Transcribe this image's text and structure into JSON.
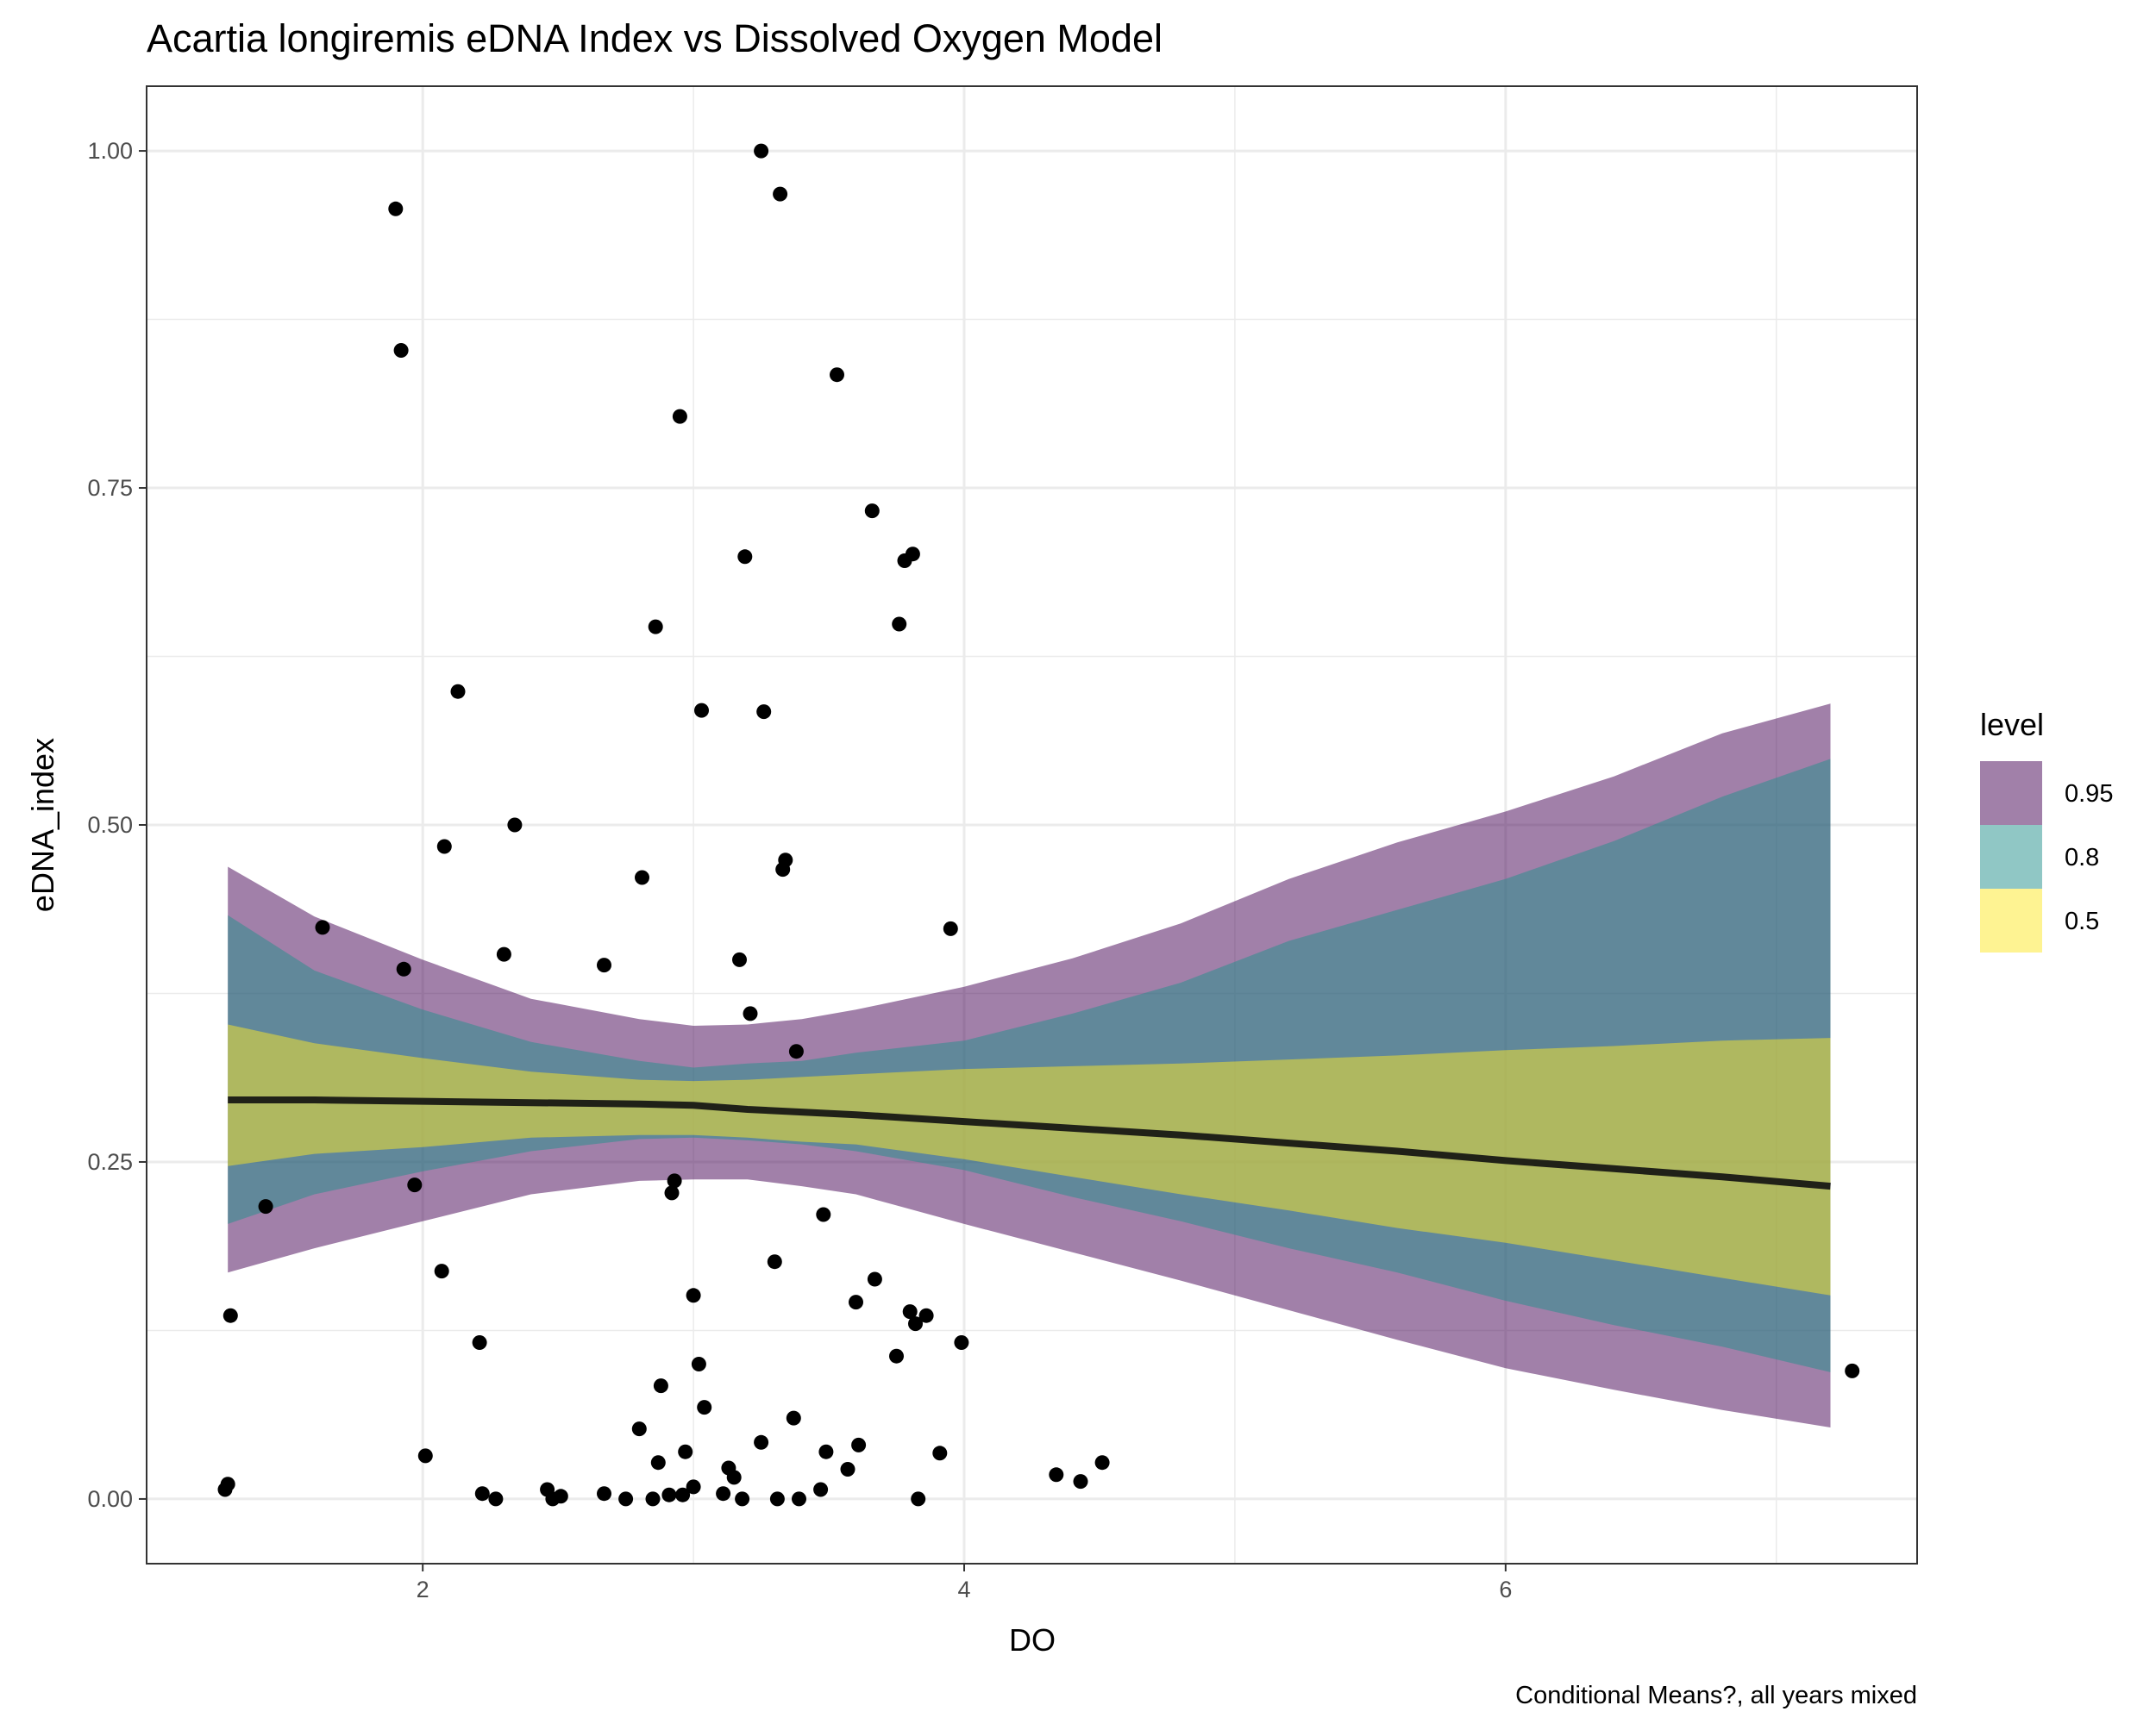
{
  "chart_data": {
    "type": "scatter",
    "title": "Acartia longiremis eDNA Index vs Dissolved Oxygen Model",
    "caption": "Conditional Means?, all years mixed",
    "xlabel": "DO",
    "ylabel": "eDNA_index",
    "xlim": [
      0.98,
      7.52
    ],
    "ylim": [
      -0.048,
      1.048
    ],
    "x_ticks": [
      2,
      4,
      6
    ],
    "x_tick_labels": [
      "2",
      "4",
      "6"
    ],
    "y_ticks": [
      0,
      0.25,
      0.5,
      0.75,
      1
    ],
    "y_tick_labels": [
      "0.00",
      "0.25",
      "0.50",
      "0.75",
      "1.00"
    ],
    "grid": true,
    "legend": {
      "title": "level",
      "position": "right",
      "items": [
        {
          "label": "0.95",
          "color": "#440154",
          "opacity": 0.5
        },
        {
          "label": "0.8",
          "color": "#21908C",
          "opacity": 0.5
        },
        {
          "label": "0.5",
          "color": "#FDE725",
          "opacity": 0.5
        }
      ]
    },
    "ribbons": {
      "x": [
        1.28,
        1.6,
        2.0,
        2.4,
        2.8,
        3.0,
        3.2,
        3.4,
        3.6,
        4.0,
        4.4,
        4.8,
        5.2,
        5.6,
        6.0,
        6.4,
        6.8,
        7.2
      ],
      "line": [
        0.296,
        0.296,
        0.295,
        0.294,
        0.293,
        0.292,
        0.289,
        0.287,
        0.285,
        0.28,
        0.275,
        0.27,
        0.264,
        0.258,
        0.251,
        0.245,
        0.239,
        0.232
      ],
      "bands": [
        {
          "level": "0.95",
          "lower": [
            0.168,
            0.186,
            0.206,
            0.226,
            0.236,
            0.237,
            0.237,
            0.232,
            0.226,
            0.204,
            0.183,
            0.162,
            0.14,
            0.118,
            0.097,
            0.081,
            0.066,
            0.053
          ],
          "upper": [
            0.469,
            0.432,
            0.4,
            0.371,
            0.356,
            0.351,
            0.352,
            0.356,
            0.363,
            0.38,
            0.401,
            0.427,
            0.46,
            0.487,
            0.51,
            0.536,
            0.568,
            0.59
          ]
        },
        {
          "level": "0.8",
          "lower": [
            0.204,
            0.226,
            0.243,
            0.258,
            0.267,
            0.268,
            0.266,
            0.263,
            0.258,
            0.244,
            0.224,
            0.206,
            0.186,
            0.168,
            0.147,
            0.129,
            0.113,
            0.094
          ]
        },
        {
          "level": "0.5",
          "lower": [
            0.247,
            0.256,
            0.261,
            0.268,
            0.27,
            0.27,
            0.268,
            0.265,
            0.263,
            0.252,
            0.239,
            0.226,
            0.214,
            0.201,
            0.19,
            0.177,
            0.164,
            0.151
          ],
          "upper": [
            0.352,
            0.338,
            0.327,
            0.317,
            0.311,
            0.31,
            0.311,
            0.313,
            0.315,
            0.319,
            0.321,
            0.323,
            0.326,
            0.329,
            0.333,
            0.336,
            0.34,
            0.342
          ]
        }
      ]
    },
    "points": {
      "x": [
        1.27,
        1.28,
        1.29,
        1.42,
        1.63,
        1.9,
        1.92,
        1.93,
        1.97,
        2.01,
        2.07,
        2.08,
        2.13,
        2.21,
        2.22,
        2.27,
        2.3,
        2.34,
        2.46,
        2.48,
        2.51,
        2.67,
        2.67,
        2.75,
        2.8,
        2.81,
        2.85,
        2.86,
        2.87,
        2.88,
        2.91,
        2.92,
        2.93,
        2.95,
        2.96,
        2.97,
        3.0,
        3.0,
        3.02,
        3.03,
        3.04,
        3.11,
        3.13,
        3.15,
        3.17,
        3.18,
        3.19,
        3.21,
        3.25,
        3.25,
        3.26,
        3.3,
        3.31,
        3.32,
        3.33,
        3.34,
        3.37,
        3.38,
        3.39,
        3.47,
        3.48,
        3.49,
        3.53,
        3.57,
        3.6,
        3.61,
        3.66,
        3.67,
        3.75,
        3.76,
        3.78,
        3.8,
        3.81,
        3.82,
        3.83,
        3.86,
        3.91,
        3.95,
        3.99,
        4.34,
        4.43,
        4.51,
        7.28
      ],
      "y": [
        0.007,
        0.011,
        0.136,
        0.217,
        0.424,
        0.957,
        0.852,
        0.393,
        0.233,
        0.032,
        0.169,
        0.484,
        0.599,
        0.116,
        0.004,
        0.0,
        0.404,
        0.5,
        0.007,
        0.0,
        0.002,
        0.004,
        0.396,
        0.0,
        0.052,
        0.461,
        0.0,
        0.647,
        0.027,
        0.084,
        0.003,
        0.227,
        0.236,
        0.803,
        0.003,
        0.035,
        0.151,
        0.009,
        0.1,
        0.585,
        0.068,
        0.004,
        0.023,
        0.016,
        0.4,
        0.0,
        0.699,
        0.36,
        1.0,
        0.042,
        0.584,
        0.176,
        0.0,
        0.968,
        0.467,
        0.474,
        0.06,
        0.332,
        0.0,
        0.007,
        0.211,
        0.035,
        0.834,
        0.022,
        0.146,
        0.04,
        0.733,
        0.163,
        0.106,
        0.649,
        0.696,
        0.139,
        0.701,
        0.13,
        0.0,
        0.136,
        0.034,
        0.423,
        0.116,
        0.018,
        0.013,
        0.027,
        0.095
      ]
    }
  }
}
